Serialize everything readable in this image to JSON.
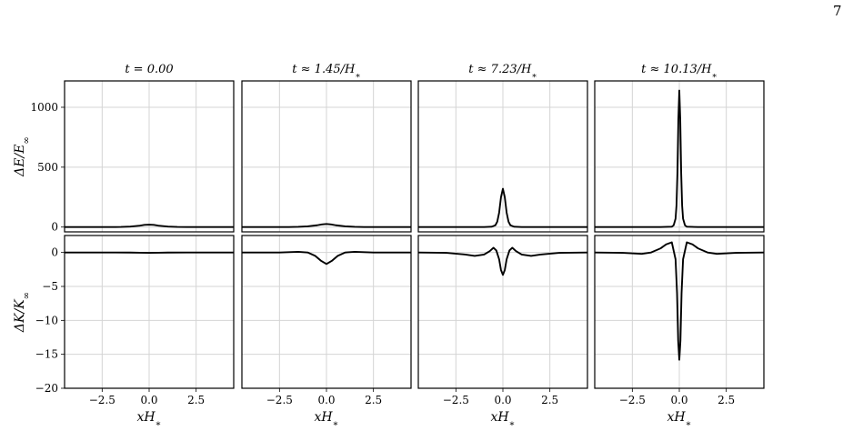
{
  "page_number": "7",
  "chart_data": {
    "type": "line",
    "layout": "2 rows x 4 columns, shared x axis per column, shared y axis per row",
    "grid": true,
    "line_color": "#000000",
    "grid_color": "#d4d4d4",
    "columns": [
      {
        "title": "t = 0.00"
      },
      {
        "title": "t ≈ 1.45/H*"
      },
      {
        "title": "t ≈ 7.23/H*"
      },
      {
        "title": "t ≈ 10.13/H*"
      }
    ],
    "x_axis": {
      "label": "xH*",
      "xlim": [
        -4.5,
        4.5
      ],
      "ticks": [
        -2.5,
        0.0,
        2.5
      ],
      "tick_labels": [
        "−2.5",
        "0.0",
        "2.5"
      ]
    },
    "rows": [
      {
        "ylabel": "ΔE/E∞",
        "ylim": [
          -40,
          1220
        ],
        "ticks": [
          0,
          500,
          1000
        ],
        "tick_labels": [
          "0",
          "500",
          "1000"
        ],
        "series": [
          {
            "x": [
              -4.5,
              -3,
              -2,
              -1.5,
              -1,
              -0.5,
              -0.25,
              0,
              0.25,
              0.5,
              1,
              1.5,
              2,
              3,
              4.5
            ],
            "y": [
              0,
              0,
              0,
              1,
              4,
              12,
              18,
              20,
              18,
              12,
              4,
              1,
              0,
              0,
              0
            ]
          },
          {
            "x": [
              -4.5,
              -3,
              -2,
              -1.5,
              -1,
              -0.5,
              -0.25,
              0,
              0.25,
              0.5,
              1,
              1.5,
              2,
              3,
              4.5
            ],
            "y": [
              0,
              0,
              0,
              2,
              6,
              15,
              22,
              26,
              22,
              15,
              6,
              2,
              0,
              0,
              0
            ]
          },
          {
            "x": [
              -4.5,
              -2,
              -1,
              -0.6,
              -0.4,
              -0.3,
              -0.2,
              -0.1,
              0,
              0.1,
              0.2,
              0.3,
              0.4,
              0.6,
              1,
              2,
              4.5
            ],
            "y": [
              0,
              0,
              0,
              3,
              15,
              45,
              120,
              250,
              320,
              250,
              120,
              45,
              15,
              3,
              0,
              0,
              0
            ]
          },
          {
            "x": [
              -4.5,
              -2,
              -1,
              -0.4,
              -0.3,
              -0.2,
              -0.15,
              -0.1,
              -0.05,
              0,
              0.05,
              0.1,
              0.15,
              0.2,
              0.3,
              0.4,
              1,
              2,
              4.5
            ],
            "y": [
              0,
              0,
              0,
              3,
              15,
              70,
              180,
              450,
              900,
              1140,
              900,
              450,
              180,
              70,
              15,
              3,
              0,
              0,
              0
            ]
          }
        ]
      },
      {
        "ylabel": "ΔK/K∞",
        "ylim": [
          -20,
          2.5
        ],
        "ticks": [
          0,
          -5,
          -10,
          -15,
          -20
        ],
        "tick_labels": [
          "0",
          "−5",
          "−10",
          "−15",
          "−20"
        ],
        "series": [
          {
            "x": [
              -4.5,
              -2,
              -1,
              -0.5,
              0,
              0.5,
              1,
              2,
              4.5
            ],
            "y": [
              0,
              0,
              -0.01,
              -0.04,
              -0.05,
              -0.04,
              -0.01,
              0,
              0
            ]
          },
          {
            "x": [
              -4.5,
              -2.5,
              -2,
              -1.5,
              -1,
              -0.6,
              -0.3,
              0,
              0.3,
              0.6,
              1,
              1.5,
              2,
              2.5,
              4.5
            ],
            "y": [
              0,
              0,
              0.05,
              0.1,
              0,
              -0.5,
              -1.2,
              -1.7,
              -1.2,
              -0.5,
              0,
              0.1,
              0.05,
              0,
              0
            ]
          },
          {
            "x": [
              -4.5,
              -3,
              -2,
              -1.5,
              -1,
              -0.7,
              -0.5,
              -0.35,
              -0.2,
              -0.1,
              0,
              0.1,
              0.2,
              0.35,
              0.5,
              0.7,
              1,
              1.5,
              2,
              3,
              4.5
            ],
            "y": [
              0,
              -0.05,
              -0.3,
              -0.5,
              -0.3,
              0.2,
              0.7,
              0.3,
              -1,
              -2.6,
              -3.3,
              -2.6,
              -1,
              0.3,
              0.7,
              0.2,
              -0.3,
              -0.5,
              -0.3,
              -0.05,
              0
            ]
          },
          {
            "x": [
              -4.5,
              -3,
              -2,
              -1.5,
              -1,
              -0.7,
              -0.4,
              -0.2,
              -0.12,
              -0.06,
              0,
              0.06,
              0.12,
              0.2,
              0.4,
              0.7,
              1,
              1.5,
              2,
              3,
              4.5
            ],
            "y": [
              0,
              -0.05,
              -0.2,
              0,
              0.6,
              1.2,
              1.5,
              -1,
              -6,
              -13,
              -15.8,
              -13,
              -6,
              -1,
              1.5,
              1.2,
              0.6,
              0,
              -0.2,
              -0.05,
              0
            ]
          }
        ]
      }
    ]
  }
}
